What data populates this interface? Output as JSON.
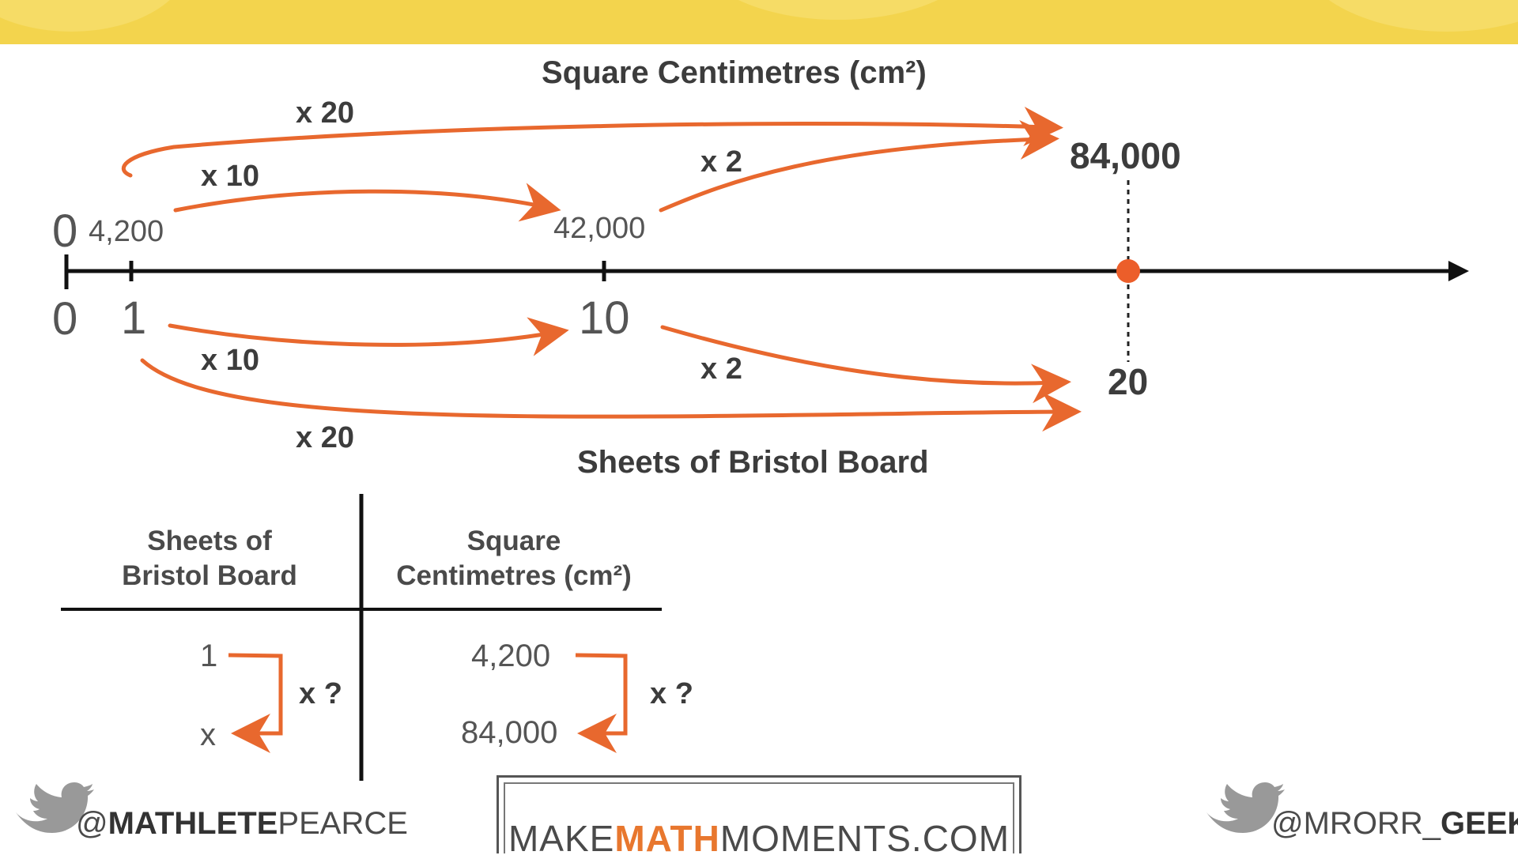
{
  "colors": {
    "banner": "#f3d44d",
    "arrow": "#e8682e",
    "text": "#3c3c3c",
    "point": "#ec5e2a"
  },
  "diagram": {
    "top_title": "Square Centimetres (cm²)",
    "bottom_title": "Sheets of Bristol Board",
    "top_labels": {
      "zero": "0",
      "one": "4,200",
      "ten": "42,000",
      "twenty": "84,000"
    },
    "bottom_labels": {
      "zero": "0",
      "one": "1",
      "ten": "10",
      "twenty": "20"
    },
    "arrows_top": {
      "x20": "x 20",
      "x10": "x 10",
      "x2": "x 2"
    },
    "arrows_bottom": {
      "x10": "x 10",
      "x2": "x 2",
      "x20": "x 20"
    }
  },
  "ratio_table": {
    "headers": [
      "Sheets of\nBristol Board",
      "Square\nCentimetres (cm²)"
    ],
    "col1": [
      "1",
      "x"
    ],
    "col2": [
      "4,200",
      "84,000"
    ],
    "op1": "x ?",
    "op2": "x ?"
  },
  "footer": {
    "left_handle_at": "@",
    "left_handle_bold": "MATHLETE",
    "left_handle_rest": "PEARCE",
    "brand_pre": "MAKE",
    "brand_accent": "MATH",
    "brand_post": "MOMENTS.COM",
    "right_handle_pre": "@MRORR_",
    "right_handle_bold": "GEEK",
    "bird_icon": "twitter-bird-icon"
  }
}
